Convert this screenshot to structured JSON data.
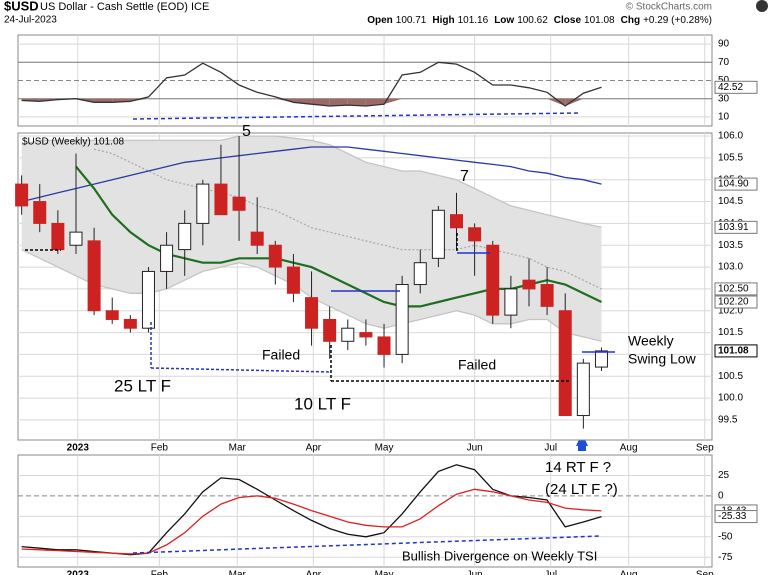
{
  "header": {
    "symbol": "$USD",
    "name": "US Dollar - Cash Settle (EOD) ICE",
    "date": "24-Jul-2023",
    "copyright": "© StockCharts.com",
    "quote": [
      {
        "label": "Open",
        "value": 100.71
      },
      {
        "label": "High",
        "value": 101.16
      },
      {
        "label": "Low",
        "value": 100.62
      },
      {
        "label": "Close",
        "value": 101.08
      },
      {
        "label": "Chg",
        "value": "+0.29 (+0.28%)"
      }
    ]
  },
  "chart_data": [
    {
      "type": "line",
      "color": "#333333",
      "categories": [
        null,
        null,
        null,
        null,
        null,
        null,
        null,
        null,
        null,
        null,
        null,
        null,
        null,
        null,
        null,
        null,
        null,
        null,
        null,
        null,
        null,
        null,
        null,
        null,
        null,
        null,
        null,
        null,
        null,
        null,
        null,
        null,
        null
      ],
      "values": [
        28,
        27,
        29,
        30,
        26,
        26,
        27,
        32,
        53,
        56,
        69,
        59,
        45,
        37,
        32,
        26,
        24,
        22,
        23,
        22,
        24,
        56,
        59,
        70,
        68,
        59,
        45,
        45,
        42,
        37,
        22,
        36,
        42.52
      ],
      "fill_below": 30,
      "fill_color": "#9c6a66",
      "xlim": [
        -0.2,
        38.1
      ],
      "ylim": [
        0,
        100
      ],
      "yticks": [
        10,
        30,
        50,
        70,
        90
      ],
      "grid": true,
      "ymarkers": [
        {
          "value": 42.52,
          "label": "42.52"
        }
      ]
    },
    {
      "type": "candlestick",
      "legend": "$USD (Weekly) 101.08",
      "up_color": "#ffffff",
      "down_color": "#cc2222",
      "categories": [
        null,
        null,
        null,
        null,
        null,
        null,
        null,
        null,
        null,
        null,
        null,
        null,
        null,
        null,
        null,
        null,
        null,
        null,
        null,
        null,
        null,
        null,
        null,
        null,
        null,
        null,
        null,
        null,
        null,
        null,
        null,
        null,
        null
      ],
      "open": [
        104.9,
        104.5,
        104.0,
        103.5,
        103.6,
        102.0,
        101.8,
        101.6,
        102.9,
        103.4,
        104.0,
        104.9,
        104.6,
        103.8,
        103.5,
        103.0,
        102.3,
        101.8,
        101.3,
        101.5,
        101.4,
        101.0,
        102.6,
        103.2,
        104.2,
        103.9,
        103.5,
        101.9,
        102.7,
        102.6,
        102.0,
        99.6,
        100.71
      ],
      "high": [
        105.1,
        104.9,
        104.3,
        105.6,
        103.9,
        102.3,
        101.9,
        103.0,
        103.8,
        104.3,
        105.0,
        105.8,
        106.0,
        104.6,
        103.6,
        103.3,
        102.9,
        102.1,
        101.8,
        101.8,
        101.7,
        102.8,
        103.4,
        104.4,
        104.7,
        104.0,
        103.6,
        102.8,
        103.2,
        103.0,
        102.4,
        100.9,
        101.16
      ],
      "low": [
        104.2,
        103.8,
        103.3,
        103.3,
        101.9,
        101.7,
        101.5,
        101.5,
        102.5,
        102.8,
        103.5,
        104.2,
        103.6,
        103.3,
        102.6,
        102.2,
        101.2,
        100.9,
        101.1,
        101.2,
        100.7,
        100.8,
        102.4,
        103.0,
        103.4,
        102.8,
        101.7,
        101.6,
        102.1,
        101.9,
        99.6,
        99.3,
        100.62
      ],
      "close": [
        104.4,
        104.0,
        103.4,
        103.8,
        102.0,
        101.8,
        101.6,
        102.9,
        103.5,
        104.0,
        104.9,
        104.2,
        104.3,
        103.5,
        103.0,
        102.4,
        101.6,
        101.3,
        101.6,
        101.4,
        101.0,
        102.6,
        103.1,
        104.3,
        103.9,
        103.6,
        101.9,
        102.5,
        102.5,
        102.1,
        99.6,
        100.8,
        101.08
      ],
      "overlays": [
        {
          "color": "#c4c4c4",
          "values": [
            105.8,
            105.9,
            105.9,
            105.9,
            105.9,
            105.9,
            105.9,
            105.9,
            105.9,
            105.9,
            105.9,
            105.9,
            106.0,
            106.0,
            106.0,
            105.95,
            105.9,
            105.8,
            105.6,
            105.4,
            105.3,
            105.2,
            105.2,
            105.1,
            105.0,
            104.8,
            104.6,
            104.4,
            104.3,
            104.2,
            104.1,
            104.0,
            103.91
          ]
        },
        {
          "color": "#c4c4c4",
          "values": [
            103.4,
            103.2,
            103.0,
            102.8,
            102.6,
            102.5,
            102.4,
            102.4,
            102.5,
            102.7,
            102.9,
            103.0,
            103.1,
            103.0,
            102.8,
            102.6,
            102.3,
            102.1,
            101.9,
            101.7,
            101.6,
            101.7,
            101.8,
            101.9,
            102.0,
            101.9,
            101.7,
            101.7,
            101.8,
            101.8,
            101.5,
            101.4,
            101.3
          ]
        },
        {
          "color": "#aaaaaa",
          "dash": true,
          "values": [
            null,
            null,
            null,
            null,
            105.7,
            105.6,
            105.4,
            105.2,
            105.0,
            104.9,
            104.8,
            104.7,
            104.6,
            104.4,
            104.3,
            104.1,
            103.9,
            103.8,
            103.7,
            103.6,
            103.5,
            103.4,
            103.4,
            103.4,
            103.4,
            103.5,
            103.4,
            103.3,
            103.2,
            103.0,
            102.9,
            102.7,
            102.5
          ]
        },
        {
          "color": "#2a3aa0",
          "values": [
            104.5,
            104.6,
            104.7,
            104.8,
            104.9,
            105.0,
            105.1,
            105.2,
            105.3,
            105.4,
            105.45,
            105.5,
            105.55,
            105.6,
            105.65,
            105.7,
            105.75,
            105.75,
            105.75,
            105.7,
            105.65,
            105.6,
            105.55,
            105.5,
            105.45,
            105.4,
            105.35,
            105.3,
            105.2,
            105.15,
            105.05,
            105.0,
            104.9
          ]
        },
        {
          "color": "#1f6e1f",
          "width": 2.2,
          "values": [
            null,
            null,
            null,
            105.3,
            104.8,
            104.2,
            103.8,
            103.5,
            103.3,
            103.2,
            103.1,
            103.1,
            103.2,
            103.2,
            103.2,
            103.1,
            103.0,
            102.8,
            102.6,
            102.4,
            102.2,
            102.1,
            102.1,
            102.2,
            102.3,
            102.4,
            102.5,
            102.5,
            102.6,
            102.7,
            102.6,
            102.4,
            102.2
          ]
        }
      ],
      "band_fill": "#e2e2e2",
      "xlim": [
        -0.2,
        38.1
      ],
      "ylim": [
        99.04,
        106.07
      ],
      "yticks": [
        99.5,
        {
          "value": 100,
          "label": "100.0"
        },
        100.5,
        {
          "value": 101,
          "label": "101.0"
        },
        101.5,
        {
          "value": 102,
          "label": "102.0"
        },
        102.5,
        {
          "value": 103,
          "label": "103.0"
        },
        103.5,
        {
          "value": 104,
          "label": "104.0"
        },
        104.5,
        {
          "value": 105,
          "label": "105.0"
        },
        105.5,
        {
          "value": 106,
          "label": "106.0"
        }
      ],
      "xticks": [
        {
          "value": 3.1,
          "label": "2023"
        },
        {
          "value": 7.6,
          "label": "Feb"
        },
        {
          "value": 11.9,
          "label": "Mar"
        },
        {
          "value": 16.1,
          "label": "Apr"
        },
        {
          "value": 20.0,
          "label": "May"
        },
        {
          "value": 25.0,
          "label": "Jun"
        },
        {
          "value": 29.2,
          "label": "Jul"
        },
        {
          "value": 33.5,
          "label": "Aug"
        },
        {
          "value": 37.7,
          "label": "Sep"
        }
      ],
      "grid": true,
      "ymarkers": [
        {
          "value": 104.9,
          "label": "104.90"
        },
        {
          "value": 103.91,
          "label": "103.91"
        },
        {
          "value": 102.5,
          "label": "102.50"
        },
        {
          "value": 102.2,
          "label": "102.20"
        },
        {
          "value": 101.08,
          "label": "101.08"
        }
      ],
      "annotations": [
        {
          "text": "5",
          "color": "#2233cc"
        },
        {
          "text": "7",
          "color": "#2233cc"
        },
        {
          "text": "Failed",
          "color": "#dd2222"
        },
        {
          "text": "Failed",
          "color": "#dd2222"
        },
        {
          "text": "25 LT F",
          "color": "#2233cc"
        },
        {
          "text": "10  LT F",
          "color": "#2233cc"
        },
        {
          "text": "Weekly",
          "color": "#2233cc"
        },
        {
          "text": "Swing Low",
          "color": "#2233cc"
        },
        {
          "text": "14 RT F ?",
          "color": "#2233cc"
        },
        {
          "text": "(24 LT F ?)",
          "color": "#2233cc"
        },
        {
          "text": "Bullish Divergence on Weekly TSI",
          "color": "#2233cc"
        }
      ]
    },
    {
      "type": "line",
      "categories": [
        null,
        null,
        null,
        null,
        null,
        null,
        null,
        null,
        null,
        null,
        null,
        null,
        null,
        null,
        null,
        null,
        null,
        null,
        null,
        null,
        null,
        null,
        null,
        null,
        null,
        null,
        null,
        null,
        null,
        null,
        null,
        null,
        null
      ],
      "series": [
        {
          "color": "#111111",
          "values": [
            -62,
            -64,
            -66,
            -66,
            -68,
            -70,
            -72,
            -70,
            -45,
            -22,
            5,
            22,
            20,
            8,
            -5,
            -18,
            -30,
            -40,
            -47,
            -50,
            -45,
            -22,
            5,
            30,
            38,
            32,
            8,
            0,
            -2,
            -5,
            -38,
            -32,
            -25.33
          ]
        },
        {
          "color": "#e02020",
          "values": [
            -65,
            -66,
            -67,
            -68,
            -69,
            -70,
            -71,
            -70,
            -60,
            -45,
            -25,
            -10,
            -2,
            0,
            -3,
            -10,
            -18,
            -25,
            -32,
            -36,
            -38,
            -38,
            -28,
            -12,
            2,
            8,
            5,
            0,
            -5,
            -8,
            -15,
            -17,
            -18.43
          ]
        }
      ],
      "xlim": [
        -0.2,
        38.1
      ],
      "ylim": [
        -87,
        50
      ],
      "yticks": [
        25,
        0,
        -25,
        -50,
        -75
      ],
      "grid": true,
      "xticks": [
        {
          "value": 3.1,
          "label": "2023"
        },
        {
          "value": 7.6,
          "label": "Feb"
        },
        {
          "value": 11.9,
          "label": "Mar"
        },
        {
          "value": 16.1,
          "label": "Apr"
        },
        {
          "value": 20.0,
          "label": "May"
        },
        {
          "value": 25.0,
          "label": "Jun"
        },
        {
          "value": 29.2,
          "label": "Jul"
        },
        {
          "value": 33.5,
          "label": "Aug"
        },
        {
          "value": 37.7,
          "label": "Sep"
        }
      ],
      "ymarkers": [
        {
          "value": -18.43,
          "label": "-18.43"
        },
        {
          "value": -25.33,
          "label": "-25.33"
        }
      ]
    }
  ]
}
